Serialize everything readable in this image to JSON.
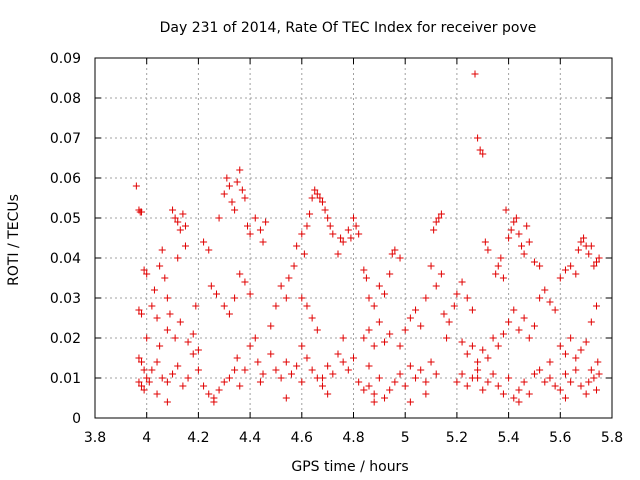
{
  "chart_data": {
    "type": "scatter",
    "title": "Day 231 of 2014, Rate Of TEC Index for receiver pove",
    "xlabel": "GPS time / hours",
    "ylabel": "ROTI / TECUs",
    "xlim": [
      3.8,
      5.8
    ],
    "ylim": [
      0,
      0.09
    ],
    "grid": true,
    "x_ticks": [
      3.8,
      4.0,
      4.2,
      4.4,
      4.6,
      4.8,
      5.0,
      5.2,
      5.4,
      5.6,
      5.8
    ],
    "x_tick_labels": [
      "3.8",
      "4",
      "4.2",
      "4.4",
      "4.6",
      "4.8",
      "5",
      "5.2",
      "5.4",
      "5.6",
      "5.8"
    ],
    "y_ticks": [
      0,
      0.01,
      0.02,
      0.03,
      0.04,
      0.05,
      0.06,
      0.07,
      0.08,
      0.09
    ],
    "y_tick_labels": [
      "0",
      "0.01",
      "0.02",
      "0.03",
      "0.04",
      "0.05",
      "0.06",
      "0.07",
      "0.08",
      "0.09"
    ],
    "marker": "+",
    "marker_color": "#e00000",
    "series": [
      {
        "name": "ROTI",
        "points": [
          [
            3.96,
            0.058
          ],
          [
            3.97,
            0.052
          ],
          [
            3.975,
            0.0515
          ],
          [
            3.98,
            0.0515
          ],
          [
            3.97,
            0.027
          ],
          [
            3.98,
            0.026
          ],
          [
            3.99,
            0.037
          ],
          [
            4.0,
            0.036
          ],
          [
            3.97,
            0.015
          ],
          [
            3.98,
            0.014
          ],
          [
            3.99,
            0.012
          ],
          [
            3.97,
            0.009
          ],
          [
            3.98,
            0.008
          ],
          [
            3.99,
            0.007
          ],
          [
            4.0,
            0.01
          ],
          [
            4.01,
            0.009
          ],
          [
            4.02,
            0.028
          ],
          [
            4.03,
            0.032
          ],
          [
            4.04,
            0.025
          ],
          [
            4.05,
            0.038
          ],
          [
            4.06,
            0.042
          ],
          [
            4.07,
            0.035
          ],
          [
            4.08,
            0.03
          ],
          [
            4.09,
            0.026
          ],
          [
            4.1,
            0.052
          ],
          [
            4.11,
            0.05
          ],
          [
            4.12,
            0.049
          ],
          [
            4.13,
            0.047
          ],
          [
            4.14,
            0.051
          ],
          [
            4.15,
            0.048
          ],
          [
            4.12,
            0.04
          ],
          [
            4.15,
            0.043
          ],
          [
            4.02,
            0.012
          ],
          [
            4.04,
            0.014
          ],
          [
            4.06,
            0.01
          ],
          [
            4.08,
            0.009
          ],
          [
            4.1,
            0.011
          ],
          [
            4.12,
            0.013
          ],
          [
            4.14,
            0.008
          ],
          [
            4.16,
            0.01
          ],
          [
            4.05,
            0.018
          ],
          [
            4.08,
            0.022
          ],
          [
            4.11,
            0.02
          ],
          [
            4.13,
            0.024
          ],
          [
            4.16,
            0.019
          ],
          [
            4.18,
            0.021
          ],
          [
            4.2,
            0.017
          ],
          [
            4.19,
            0.028
          ],
          [
            4.22,
            0.044
          ],
          [
            4.24,
            0.042
          ],
          [
            4.25,
            0.033
          ],
          [
            4.27,
            0.031
          ],
          [
            4.28,
            0.05
          ],
          [
            4.3,
            0.056
          ],
          [
            4.31,
            0.06
          ],
          [
            4.32,
            0.058
          ],
          [
            4.33,
            0.054
          ],
          [
            4.34,
            0.052
          ],
          [
            4.35,
            0.059
          ],
          [
            4.36,
            0.062
          ],
          [
            4.37,
            0.057
          ],
          [
            4.38,
            0.055
          ],
          [
            4.39,
            0.048
          ],
          [
            4.4,
            0.046
          ],
          [
            4.3,
            0.028
          ],
          [
            4.32,
            0.026
          ],
          [
            4.34,
            0.03
          ],
          [
            4.36,
            0.036
          ],
          [
            4.38,
            0.034
          ],
          [
            4.4,
            0.031
          ],
          [
            4.42,
            0.05
          ],
          [
            4.44,
            0.047
          ],
          [
            4.45,
            0.044
          ],
          [
            4.46,
            0.049
          ],
          [
            4.35,
            0.015
          ],
          [
            4.38,
            0.012
          ],
          [
            4.4,
            0.018
          ],
          [
            4.43,
            0.014
          ],
          [
            4.45,
            0.011
          ],
          [
            4.48,
            0.016
          ],
          [
            4.22,
            0.008
          ],
          [
            4.24,
            0.006
          ],
          [
            4.26,
            0.005
          ],
          [
            4.28,
            0.007
          ],
          [
            4.3,
            0.009
          ],
          [
            4.32,
            0.01
          ],
          [
            4.34,
            0.012
          ],
          [
            4.36,
            0.008
          ],
          [
            4.48,
            0.023
          ],
          [
            4.5,
            0.028
          ],
          [
            4.52,
            0.033
          ],
          [
            4.54,
            0.03
          ],
          [
            4.55,
            0.035
          ],
          [
            4.57,
            0.038
          ],
          [
            4.58,
            0.043
          ],
          [
            4.6,
            0.046
          ],
          [
            4.61,
            0.041
          ],
          [
            4.62,
            0.048
          ],
          [
            4.63,
            0.051
          ],
          [
            4.64,
            0.055
          ],
          [
            4.65,
            0.057
          ],
          [
            4.66,
            0.056
          ],
          [
            4.67,
            0.055
          ],
          [
            4.68,
            0.054
          ],
          [
            4.69,
            0.052
          ],
          [
            4.7,
            0.05
          ],
          [
            4.71,
            0.048
          ],
          [
            4.72,
            0.046
          ],
          [
            4.6,
            0.03
          ],
          [
            4.62,
            0.028
          ],
          [
            4.64,
            0.025
          ],
          [
            4.66,
            0.022
          ],
          [
            4.5,
            0.012
          ],
          [
            4.52,
            0.01
          ],
          [
            4.54,
            0.014
          ],
          [
            4.56,
            0.011
          ],
          [
            4.58,
            0.013
          ],
          [
            4.6,
            0.009
          ],
          [
            4.62,
            0.015
          ],
          [
            4.64,
            0.012
          ],
          [
            4.66,
            0.01
          ],
          [
            4.68,
            0.008
          ],
          [
            4.7,
            0.013
          ],
          [
            4.72,
            0.011
          ],
          [
            4.74,
            0.016
          ],
          [
            4.76,
            0.014
          ],
          [
            4.78,
            0.012
          ],
          [
            4.8,
            0.015
          ],
          [
            4.74,
            0.041
          ],
          [
            4.75,
            0.045
          ],
          [
            4.76,
            0.044
          ],
          [
            4.78,
            0.047
          ],
          [
            4.79,
            0.045
          ],
          [
            4.8,
            0.05
          ],
          [
            4.81,
            0.048
          ],
          [
            4.82,
            0.046
          ],
          [
            4.84,
            0.037
          ],
          [
            4.85,
            0.035
          ],
          [
            4.86,
            0.03
          ],
          [
            4.88,
            0.028
          ],
          [
            4.9,
            0.033
          ],
          [
            4.92,
            0.031
          ],
          [
            4.94,
            0.036
          ],
          [
            4.95,
            0.041
          ],
          [
            4.96,
            0.042
          ],
          [
            4.98,
            0.04
          ],
          [
            4.84,
            0.02
          ],
          [
            4.86,
            0.022
          ],
          [
            4.88,
            0.018
          ],
          [
            4.9,
            0.024
          ],
          [
            4.92,
            0.019
          ],
          [
            4.94,
            0.021
          ],
          [
            4.82,
            0.009
          ],
          [
            4.84,
            0.007
          ],
          [
            4.86,
            0.008
          ],
          [
            4.88,
            0.006
          ],
          [
            4.9,
            0.01
          ],
          [
            4.92,
            0.005
          ],
          [
            4.94,
            0.007
          ],
          [
            4.96,
            0.009
          ],
          [
            4.98,
            0.011
          ],
          [
            5.0,
            0.008
          ],
          [
            5.02,
            0.013
          ],
          [
            5.04,
            0.01
          ],
          [
            5.06,
            0.012
          ],
          [
            5.08,
            0.009
          ],
          [
            5.1,
            0.014
          ],
          [
            5.12,
            0.011
          ],
          [
            5.0,
            0.022
          ],
          [
            5.02,
            0.025
          ],
          [
            5.04,
            0.027
          ],
          [
            5.06,
            0.023
          ],
          [
            5.08,
            0.03
          ],
          [
            5.1,
            0.038
          ],
          [
            5.12,
            0.033
          ],
          [
            5.14,
            0.036
          ],
          [
            5.12,
            0.049
          ],
          [
            5.13,
            0.05
          ],
          [
            5.14,
            0.051
          ],
          [
            5.11,
            0.047
          ],
          [
            5.15,
            0.026
          ],
          [
            5.17,
            0.024
          ],
          [
            5.19,
            0.028
          ],
          [
            5.2,
            0.031
          ],
          [
            5.22,
            0.034
          ],
          [
            5.24,
            0.03
          ],
          [
            5.26,
            0.027
          ],
          [
            5.27,
            0.086
          ],
          [
            5.28,
            0.07
          ],
          [
            5.29,
            0.067
          ],
          [
            5.3,
            0.066
          ],
          [
            5.31,
            0.044
          ],
          [
            5.32,
            0.042
          ],
          [
            5.22,
            0.019
          ],
          [
            5.24,
            0.016
          ],
          [
            5.26,
            0.018
          ],
          [
            5.28,
            0.014
          ],
          [
            5.3,
            0.017
          ],
          [
            5.32,
            0.015
          ],
          [
            5.34,
            0.02
          ],
          [
            5.2,
            0.009
          ],
          [
            5.22,
            0.011
          ],
          [
            5.24,
            0.008
          ],
          [
            5.26,
            0.01
          ],
          [
            5.28,
            0.012
          ],
          [
            5.3,
            0.007
          ],
          [
            5.32,
            0.009
          ],
          [
            5.34,
            0.011
          ],
          [
            5.35,
            0.036
          ],
          [
            5.36,
            0.038
          ],
          [
            5.37,
            0.04
          ],
          [
            5.38,
            0.035
          ],
          [
            5.39,
            0.052
          ],
          [
            5.4,
            0.045
          ],
          [
            5.41,
            0.047
          ],
          [
            5.42,
            0.049
          ],
          [
            5.43,
            0.05
          ],
          [
            5.44,
            0.046
          ],
          [
            5.45,
            0.043
          ],
          [
            5.46,
            0.041
          ],
          [
            5.47,
            0.048
          ],
          [
            5.48,
            0.044
          ],
          [
            5.5,
            0.039
          ],
          [
            5.52,
            0.038
          ],
          [
            5.38,
            0.021
          ],
          [
            5.4,
            0.024
          ],
          [
            5.42,
            0.027
          ],
          [
            5.44,
            0.022
          ],
          [
            5.46,
            0.025
          ],
          [
            5.48,
            0.02
          ],
          [
            5.5,
            0.023
          ],
          [
            5.52,
            0.03
          ],
          [
            5.36,
            0.008
          ],
          [
            5.38,
            0.006
          ],
          [
            5.4,
            0.01
          ],
          [
            5.42,
            0.005
          ],
          [
            5.44,
            0.007
          ],
          [
            5.46,
            0.009
          ],
          [
            5.48,
            0.006
          ],
          [
            5.5,
            0.011
          ],
          [
            5.52,
            0.012
          ],
          [
            5.54,
            0.009
          ],
          [
            5.56,
            0.01
          ],
          [
            5.58,
            0.008
          ],
          [
            5.6,
            0.007
          ],
          [
            5.62,
            0.011
          ],
          [
            5.64,
            0.009
          ],
          [
            5.66,
            0.012
          ],
          [
            5.54,
            0.032
          ],
          [
            5.56,
            0.029
          ],
          [
            5.58,
            0.027
          ],
          [
            5.6,
            0.035
          ],
          [
            5.62,
            0.037
          ],
          [
            5.64,
            0.038
          ],
          [
            5.66,
            0.036
          ],
          [
            5.67,
            0.042
          ],
          [
            5.68,
            0.044
          ],
          [
            5.69,
            0.045
          ],
          [
            5.7,
            0.043
          ],
          [
            5.71,
            0.041
          ],
          [
            5.72,
            0.043
          ],
          [
            5.73,
            0.038
          ],
          [
            5.74,
            0.039
          ],
          [
            5.75,
            0.04
          ],
          [
            5.6,
            0.018
          ],
          [
            5.62,
            0.016
          ],
          [
            5.64,
            0.02
          ],
          [
            5.66,
            0.015
          ],
          [
            5.68,
            0.017
          ],
          [
            5.7,
            0.019
          ],
          [
            5.72,
            0.024
          ],
          [
            5.74,
            0.028
          ],
          [
            5.68,
            0.008
          ],
          [
            5.7,
            0.006
          ],
          [
            5.71,
            0.009
          ],
          [
            5.72,
            0.012
          ],
          [
            5.73,
            0.01
          ],
          [
            5.74,
            0.007
          ],
          [
            5.75,
            0.011
          ],
          [
            5.745,
            0.014
          ],
          [
            4.08,
            0.004
          ],
          [
            4.26,
            0.004
          ],
          [
            4.54,
            0.005
          ],
          [
            4.88,
            0.004
          ],
          [
            5.02,
            0.004
          ],
          [
            5.44,
            0.004
          ],
          [
            5.62,
            0.005
          ],
          [
            4.7,
            0.006
          ],
          [
            4.0,
            0.02
          ],
          [
            4.18,
            0.016
          ],
          [
            4.42,
            0.02
          ],
          [
            4.6,
            0.018
          ],
          [
            4.76,
            0.02
          ],
          [
            4.98,
            0.018
          ],
          [
            5.16,
            0.02
          ],
          [
            5.36,
            0.018
          ],
          [
            4.04,
            0.006
          ],
          [
            4.2,
            0.012
          ],
          [
            4.44,
            0.009
          ],
          [
            4.68,
            0.01
          ],
          [
            4.86,
            0.013
          ],
          [
            5.08,
            0.006
          ],
          [
            5.28,
            0.01
          ],
          [
            5.56,
            0.014
          ]
        ]
      }
    ]
  }
}
